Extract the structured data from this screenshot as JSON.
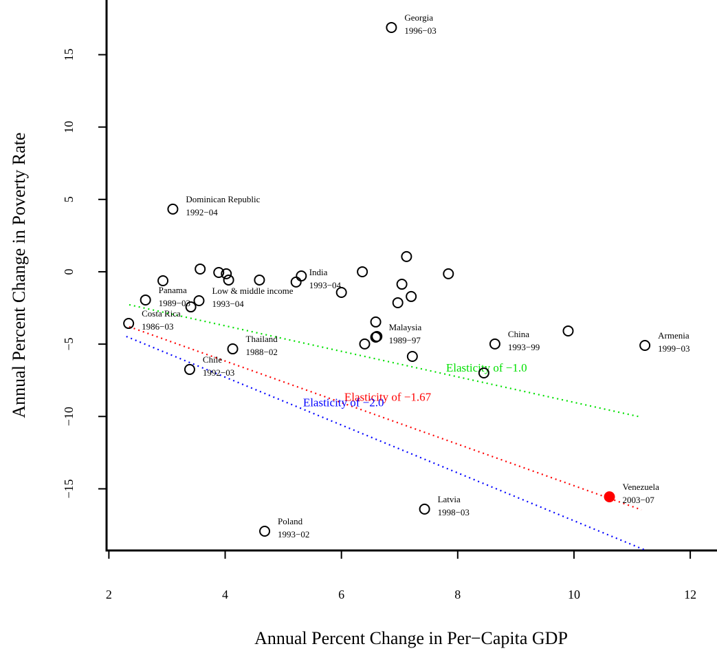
{
  "chart_data": {
    "type": "scatter",
    "x_label": "Annual Percent Change in Per−Capita GDP",
    "y_label": "Annual Percent Change in Poverty Rate",
    "xlim": [
      1.96,
      12.46
    ],
    "ylim": [
      -19.26,
      18.78
    ],
    "xticks": [
      2,
      4,
      6,
      8,
      10,
      12
    ],
    "yticks": [
      {
        "value": -15,
        "label": "−15"
      },
      {
        "value": -10,
        "label": "−10"
      },
      {
        "value": -5,
        "label": "−5"
      },
      0,
      5,
      10,
      15
    ],
    "series": [
      {
        "color": "#000000",
        "filled": false,
        "x": [
          6.86,
          3.1,
          3.57,
          3.89,
          4.02,
          4.06,
          2.93,
          4.59,
          5.22,
          5.31,
          6.36,
          7.12,
          7.84,
          7.04,
          6.0,
          6.97,
          7.2,
          2.63,
          3.55,
          3.41,
          2.34,
          6.59,
          6.59,
          6.4,
          6.61,
          7.22,
          4.13,
          8.64,
          9.9,
          11.22,
          8.45,
          3.39,
          7.43,
          4.68
        ],
        "values": [
          16.88,
          4.33,
          0.19,
          -0.05,
          -0.14,
          -0.57,
          -0.62,
          -0.57,
          -0.71,
          -0.29,
          0.0,
          1.05,
          -0.14,
          -0.86,
          -1.43,
          -2.14,
          -1.71,
          -1.95,
          -2.0,
          -2.43,
          -3.57,
          -3.47,
          -4.52,
          -4.99,
          -4.47,
          -5.85,
          -5.33,
          -4.99,
          -4.09,
          -5.09,
          -6.99,
          -6.75,
          -16.4,
          -17.93
        ],
        "names": [
          "Georgia",
          "Dominican Republic",
          null,
          null,
          null,
          null,
          null,
          null,
          "India",
          null,
          null,
          null,
          null,
          null,
          null,
          null,
          null,
          "Panama",
          "Low & middle income",
          null,
          "Costa Rica",
          null,
          "Malaysia",
          null,
          null,
          null,
          "Thailand",
          "China",
          null,
          "Armenia",
          null,
          "Chile",
          "Latvia",
          "Poland"
        ],
        "periods": [
          "1996−03",
          "1992−04",
          null,
          null,
          null,
          null,
          null,
          null,
          "1993−04",
          null,
          null,
          null,
          null,
          null,
          null,
          null,
          null,
          "1989−03",
          "1993−04",
          null,
          "1986−03",
          null,
          "1989−97",
          null,
          null,
          null,
          "1988−02",
          "1993−99",
          null,
          "1999−03",
          null,
          "1992−03",
          "1998−03",
          "1993−02"
        ]
      },
      {
        "color": "#ff0000",
        "filled": true,
        "x": [
          10.61
        ],
        "values": [
          -15.55
        ],
        "names": [
          "Venezuela"
        ],
        "periods": [
          "2003−07"
        ]
      }
    ],
    "lines": [
      {
        "label": "Elasticity of −1.0",
        "color": "#00e000",
        "x": [
          2.35,
          11.14
        ],
        "values": [
          -2.28,
          -10.03
        ]
      },
      {
        "label": "Elasticity of −1.67",
        "color": "#ff0000",
        "x": [
          2.35,
          11.16
        ],
        "values": [
          -3.8,
          -16.45
        ]
      },
      {
        "label": "Elasticity of −2.0",
        "color": "#0000ff",
        "x": [
          2.3,
          11.24
        ],
        "values": [
          -4.47,
          -19.26
        ]
      }
    ]
  }
}
